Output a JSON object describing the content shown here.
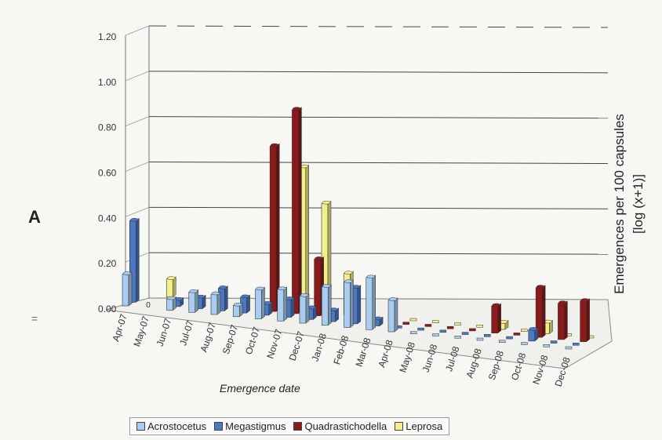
{
  "panel_label": "A",
  "margin_mark": "=",
  "chart_data": {
    "type": "bar",
    "title": "",
    "xlabel": "Emergence date",
    "ylabel_lines": [
      "Emergences per 100 capsules",
      "[log (x+1)]"
    ],
    "ylim": [
      0,
      1.2
    ],
    "yticks": [
      "0.00",
      "0.20",
      "0.40",
      "0.60",
      "0.80",
      "1.00",
      "1.20"
    ],
    "grid": true,
    "legend_position": "bottom",
    "categories": [
      "Apr-07",
      "May-07",
      "Jun-07",
      "Jul-07",
      "Aug-07",
      "Sep-07",
      "Oct-07",
      "Nov-07",
      "Dec-07",
      "Jan-08",
      "Feb-08",
      "Mar-08",
      "Apr-08",
      "May-08",
      "Jun-08",
      "Jul-08",
      "Aug-08",
      "Sep-08",
      "Oct-08",
      "Nov-08",
      "Dec-08"
    ],
    "series": [
      {
        "name": "Acrostocetus",
        "color": "#a9cdf0",
        "values": [
          0.14,
          0.0,
          0.05,
          0.09,
          0.09,
          0.05,
          0.13,
          0.14,
          0.12,
          0.17,
          0.2,
          0.23,
          0.14,
          0,
          0,
          0,
          0,
          0,
          0,
          0,
          0
        ]
      },
      {
        "name": "Megastigmus",
        "color": "#4a78c3",
        "values": [
          0.36,
          0.0,
          0.03,
          0.05,
          0.1,
          0.07,
          0.05,
          0.08,
          0.05,
          0.05,
          0.16,
          0.03,
          0,
          0,
          0,
          0,
          0,
          0,
          0.05,
          0,
          0
        ]
      },
      {
        "name": "Quadrastichodella",
        "color": "#8b1a1a",
        "values": [
          0.0,
          0.0,
          0.0,
          0.0,
          0.0,
          0.0,
          0.73,
          0.9,
          0.25,
          0.0,
          0.0,
          0.0,
          0,
          0,
          0,
          0,
          0.12,
          0,
          0.22,
          0.16,
          0.18
        ]
      },
      {
        "name": "Leprosa",
        "color": "#f3ef8a",
        "values": [
          0.0,
          0.08,
          0.0,
          0.0,
          0.0,
          0.0,
          0.08,
          0.63,
          0.48,
          0.18,
          0.0,
          0.0,
          0,
          0,
          0,
          0,
          0.03,
          0,
          0.05,
          0,
          0
        ]
      }
    ],
    "zero_labels": "0"
  },
  "colors": {
    "background": "#f7f7f4",
    "gridline": "#444444",
    "floor": "#f0f0ec"
  }
}
